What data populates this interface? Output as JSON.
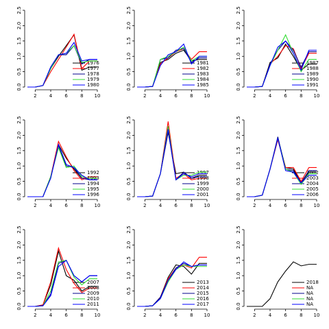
{
  "chart_data": [
    {
      "type": "line",
      "x": [
        1,
        2,
        3,
        4,
        5,
        6,
        7,
        8,
        9,
        10
      ],
      "xlim": [
        1,
        10
      ],
      "xticks": [
        2,
        4,
        6,
        8,
        10
      ],
      "ylim": [
        0,
        2.5
      ],
      "yticks": [
        {
          "value": 0,
          "label": "0.0"
        },
        {
          "value": 0.5,
          "label": "0.5"
        },
        {
          "value": 1,
          "label": "1.0"
        },
        {
          "value": 1.5,
          "label": "1.5"
        },
        {
          "value": 2,
          "label": "2.0"
        },
        {
          "value": 2.5,
          "label": "2.5"
        }
      ],
      "series": [
        {
          "name": "1976",
          "color": "#000000",
          "values": [
            0,
            0,
            0.05,
            0.6,
            1.0,
            1.35,
            1.7,
            0.55,
            0.65,
            0.65
          ]
        },
        {
          "name": "1977",
          "color": "#ff0000",
          "values": [
            0,
            0,
            0.05,
            0.5,
            0.9,
            1.3,
            1.72,
            0.6,
            0.85,
            0.85
          ]
        },
        {
          "name": "1978",
          "color": "#00008b",
          "values": [
            0,
            0,
            0.05,
            0.65,
            1.05,
            1.05,
            1.35,
            0.75,
            0.9,
            0.9
          ]
        },
        {
          "name": "1979",
          "color": "#33dd33",
          "values": [
            0,
            0,
            0.05,
            0.6,
            1.05,
            1.1,
            1.35,
            0.8,
            0.85,
            0.85
          ]
        },
        {
          "name": "1980",
          "color": "#0000ff",
          "values": [
            0,
            0,
            0.05,
            0.65,
            1.05,
            1.1,
            1.45,
            0.85,
            0.9,
            0.9
          ]
        }
      ]
    },
    {
      "type": "line",
      "x": [
        1,
        2,
        3,
        4,
        5,
        6,
        7,
        8,
        9,
        10
      ],
      "xlim": [
        1,
        10
      ],
      "xticks": [
        2,
        4,
        6,
        8,
        10
      ],
      "ylim": [
        0,
        2.5
      ],
      "yticks": [
        {
          "value": 0,
          "label": "0.0"
        },
        {
          "value": 0.5,
          "label": "0.5"
        },
        {
          "value": 1,
          "label": "1.0"
        },
        {
          "value": 1.5,
          "label": "1.5"
        },
        {
          "value": 2,
          "label": "2.0"
        },
        {
          "value": 2.5,
          "label": "2.5"
        }
      ],
      "series": [
        {
          "name": "1981",
          "color": "#000000",
          "values": [
            0,
            0,
            0.02,
            0.8,
            0.9,
            1.1,
            1.2,
            0.85,
            0.9,
            0.9
          ]
        },
        {
          "name": "1982",
          "color": "#ff0000",
          "values": [
            0,
            0,
            0.02,
            0.75,
            0.95,
            1.15,
            1.25,
            0.9,
            1.15,
            1.15
          ]
        },
        {
          "name": "1983",
          "color": "#00008b",
          "values": [
            0,
            0,
            0.02,
            0.9,
            0.95,
            1.2,
            1.25,
            0.8,
            0.95,
            0.95
          ]
        },
        {
          "name": "1984",
          "color": "#33dd33",
          "values": [
            0,
            0,
            0.02,
            0.9,
            1.0,
            1.15,
            1.3,
            0.85,
            1.0,
            1.0
          ]
        },
        {
          "name": "1985",
          "color": "#0000ff",
          "values": [
            0,
            0,
            0.02,
            0.7,
            1.05,
            1.15,
            1.4,
            0.75,
            1.0,
            1.0
          ]
        }
      ]
    },
    {
      "type": "line",
      "x": [
        1,
        2,
        3,
        4,
        5,
        6,
        7,
        8,
        9,
        10
      ],
      "xlim": [
        1,
        10
      ],
      "xticks": [
        2,
        4,
        6,
        8,
        10
      ],
      "ylim": [
        0,
        2.5
      ],
      "yticks": [
        {
          "value": 0,
          "label": "0.0"
        },
        {
          "value": 0.5,
          "label": "0.5"
        },
        {
          "value": 1,
          "label": "1.0"
        },
        {
          "value": 1.5,
          "label": "1.5"
        },
        {
          "value": 2,
          "label": "2.0"
        },
        {
          "value": 2.5,
          "label": "2.5"
        }
      ],
      "series": [
        {
          "name": "1987",
          "color": "#000000",
          "values": [
            0,
            0,
            0.02,
            0.8,
            0.95,
            1.4,
            1.0,
            0.55,
            0.75,
            0.75
          ]
        },
        {
          "name": "1988",
          "color": "#ff0000",
          "values": [
            0,
            0,
            0.02,
            0.75,
            1.0,
            1.35,
            1.25,
            0.6,
            1.1,
            1.1
          ]
        },
        {
          "name": "1989",
          "color": "#00008b",
          "values": [
            0,
            0,
            0.02,
            0.75,
            1.2,
            1.5,
            1.2,
            0.65,
            1.15,
            1.15
          ]
        },
        {
          "name": "1990",
          "color": "#33dd33",
          "values": [
            0,
            0,
            0.02,
            0.7,
            1.2,
            1.7,
            1.1,
            0.5,
            0.9,
            0.9
          ]
        },
        {
          "name": "1991",
          "color": "#0000ff",
          "values": [
            0,
            0,
            0.02,
            0.7,
            1.3,
            1.5,
            1.1,
            0.55,
            1.2,
            1.2
          ]
        }
      ]
    },
    {
      "type": "line",
      "x": [
        1,
        2,
        3,
        4,
        5,
        6,
        7,
        8,
        9,
        10
      ],
      "xlim": [
        1,
        10
      ],
      "xticks": [
        2,
        4,
        6,
        8,
        10
      ],
      "ylim": [
        0,
        2.5
      ],
      "yticks": [
        {
          "value": 0,
          "label": "0.0"
        },
        {
          "value": 0.5,
          "label": "0.5"
        },
        {
          "value": 1,
          "label": "1.0"
        },
        {
          "value": 1.5,
          "label": "1.5"
        },
        {
          "value": 2,
          "label": "2.0"
        },
        {
          "value": 2.5,
          "label": "2.5"
        }
      ],
      "series": [
        {
          "name": "1992",
          "color": "#000000",
          "values": [
            0,
            0,
            0,
            0.65,
            1.7,
            1.25,
            0.9,
            0.6,
            0.6,
            0.6
          ]
        },
        {
          "name": "1993",
          "color": "#ff0000",
          "values": [
            0,
            0,
            0,
            0.65,
            1.8,
            1.3,
            0.85,
            0.55,
            0.65,
            0.65
          ]
        },
        {
          "name": "1994",
          "color": "#00008b",
          "values": [
            0,
            0,
            0,
            0.65,
            1.65,
            1.0,
            0.95,
            0.6,
            0.55,
            0.55
          ]
        },
        {
          "name": "1995",
          "color": "#33dd33",
          "values": [
            0,
            0,
            0,
            0.65,
            1.6,
            0.95,
            1.0,
            0.65,
            0.6,
            0.6
          ]
        },
        {
          "name": "1996",
          "color": "#0000ff",
          "values": [
            0,
            0,
            0,
            0.6,
            1.7,
            1.05,
            0.95,
            0.7,
            0.55,
            0.55
          ]
        }
      ]
    },
    {
      "type": "line",
      "x": [
        1,
        2,
        3,
        4,
        5,
        6,
        7,
        8,
        9,
        10
      ],
      "xlim": [
        1,
        10
      ],
      "xticks": [
        2,
        4,
        6,
        8,
        10
      ],
      "ylim": [
        0,
        2.5
      ],
      "yticks": [
        {
          "value": 0,
          "label": "0.0"
        },
        {
          "value": 0.5,
          "label": "0.5"
        },
        {
          "value": 1,
          "label": "1.0"
        },
        {
          "value": 1.5,
          "label": "1.5"
        },
        {
          "value": 2,
          "label": "2.0"
        },
        {
          "value": 2.5,
          "label": "2.5"
        }
      ],
      "series": [
        {
          "name": "1997",
          "color": "#000000",
          "values": [
            0,
            0,
            0.02,
            0.75,
            2.1,
            0.75,
            0.8,
            0.6,
            0.7,
            0.7
          ]
        },
        {
          "name": "1998",
          "color": "#ff0000",
          "values": [
            0,
            0,
            0.02,
            0.75,
            2.45,
            0.6,
            0.75,
            0.55,
            0.6,
            0.6
          ]
        },
        {
          "name": "1999",
          "color": "#00008b",
          "values": [
            0,
            0,
            0.02,
            0.75,
            2.15,
            0.55,
            0.8,
            0.6,
            0.65,
            0.65
          ]
        },
        {
          "name": "2000",
          "color": "#33dd33",
          "values": [
            0,
            0,
            0.02,
            0.75,
            2.3,
            0.55,
            0.7,
            0.7,
            0.8,
            0.8
          ]
        },
        {
          "name": "2001",
          "color": "#0000ff",
          "values": [
            0,
            0,
            0.02,
            0.75,
            2.2,
            0.55,
            0.75,
            0.65,
            0.75,
            0.75
          ]
        }
      ]
    },
    {
      "type": "line",
      "x": [
        1,
        2,
        3,
        4,
        5,
        6,
        7,
        8,
        9,
        10
      ],
      "xlim": [
        1,
        10
      ],
      "xticks": [
        2,
        4,
        6,
        8,
        10
      ],
      "ylim": [
        0,
        2.5
      ],
      "yticks": [
        {
          "value": 0,
          "label": "0.0"
        },
        {
          "value": 0.5,
          "label": "0.5"
        },
        {
          "value": 1,
          "label": "1.0"
        },
        {
          "value": 1.5,
          "label": "1.5"
        },
        {
          "value": 2,
          "label": "2.0"
        },
        {
          "value": 2.5,
          "label": "2.5"
        }
      ],
      "series": [
        {
          "name": "2002",
          "color": "#000000",
          "values": [
            0,
            0,
            0.05,
            0.9,
            1.9,
            0.95,
            0.9,
            0.45,
            0.8,
            0.8
          ]
        },
        {
          "name": "2003",
          "color": "#ff0000",
          "values": [
            0,
            0,
            0.05,
            0.9,
            1.85,
            0.95,
            0.95,
            0.5,
            0.95,
            0.95
          ]
        },
        {
          "name": "2004",
          "color": "#00008b",
          "values": [
            0,
            0,
            0.05,
            0.9,
            1.95,
            0.9,
            0.85,
            0.45,
            0.85,
            0.85
          ]
        },
        {
          "name": "2005",
          "color": "#33dd33",
          "values": [
            0,
            0,
            0.05,
            0.9,
            1.9,
            0.9,
            0.8,
            0.4,
            0.75,
            0.75
          ]
        },
        {
          "name": "2006",
          "color": "#0000ff",
          "values": [
            0,
            0,
            0.05,
            0.9,
            1.9,
            0.85,
            0.8,
            0.45,
            0.7,
            0.7
          ]
        }
      ]
    },
    {
      "type": "line",
      "x": [
        1,
        2,
        3,
        4,
        5,
        6,
        7,
        8,
        9,
        10
      ],
      "xlim": [
        1,
        10
      ],
      "xticks": [
        2,
        4,
        6,
        8,
        10
      ],
      "ylim": [
        0,
        2.5
      ],
      "yticks": [
        {
          "value": 0,
          "label": "0.0"
        },
        {
          "value": 0.5,
          "label": "0.5"
        },
        {
          "value": 1,
          "label": "1.0"
        },
        {
          "value": 1.5,
          "label": "1.5"
        },
        {
          "value": 2,
          "label": "2.0"
        },
        {
          "value": 2.5,
          "label": "2.5"
        }
      ],
      "series": [
        {
          "name": "2007",
          "color": "#000000",
          "values": [
            0,
            0,
            0.05,
            0.7,
            1.8,
            1.0,
            0.85,
            0.5,
            0.65,
            0.65
          ]
        },
        {
          "name": "2008",
          "color": "#ff0000",
          "values": [
            0,
            0,
            0.05,
            0.8,
            1.9,
            1.2,
            0.75,
            0.45,
            0.6,
            0.6
          ]
        },
        {
          "name": "2009",
          "color": "#00008b",
          "values": [
            0,
            0,
            0.02,
            0.4,
            1.4,
            1.5,
            1.0,
            0.8,
            1.0,
            1.0
          ]
        },
        {
          "name": "2010",
          "color": "#33dd33",
          "values": [
            0,
            0,
            0.02,
            0.5,
            1.45,
            1.5,
            0.95,
            0.7,
            0.9,
            0.9
          ]
        },
        {
          "name": "2011",
          "color": "#0000ff",
          "values": [
            0,
            0,
            0.02,
            0.35,
            1.3,
            1.5,
            1.0,
            0.8,
            1.0,
            1.0
          ]
        }
      ]
    },
    {
      "type": "line",
      "x": [
        1,
        2,
        3,
        4,
        5,
        6,
        7,
        8,
        9,
        10
      ],
      "xlim": [
        1,
        10
      ],
      "xticks": [
        2,
        4,
        6,
        8,
        10
      ],
      "ylim": [
        0,
        2.5
      ],
      "yticks": [
        {
          "value": 0,
          "label": "0.0"
        },
        {
          "value": 0.5,
          "label": "0.5"
        },
        {
          "value": 1,
          "label": "1.0"
        },
        {
          "value": 1.5,
          "label": "1.5"
        },
        {
          "value": 2,
          "label": "2.0"
        },
        {
          "value": 2.5,
          "label": "2.5"
        }
      ],
      "series": [
        {
          "name": "2013",
          "color": "#000000",
          "values": [
            0,
            0,
            0.02,
            0.3,
            0.95,
            1.35,
            1.3,
            1.05,
            1.4,
            1.4
          ]
        },
        {
          "name": "2014",
          "color": "#ff0000",
          "values": [
            0,
            0,
            0.02,
            0.3,
            0.9,
            1.25,
            1.35,
            1.25,
            1.6,
            1.6
          ]
        },
        {
          "name": "2015",
          "color": "#00008b",
          "values": [
            0,
            0,
            0.02,
            0.3,
            0.85,
            1.25,
            1.4,
            1.3,
            1.35,
            1.35
          ]
        },
        {
          "name": "2016",
          "color": "#33dd33",
          "values": [
            0,
            0,
            0.02,
            0.25,
            0.8,
            1.2,
            1.35,
            1.3,
            1.3,
            1.3
          ]
        },
        {
          "name": "2017",
          "color": "#0000ff",
          "values": [
            0,
            0,
            0.02,
            0.25,
            0.85,
            1.2,
            1.45,
            1.3,
            1.35,
            1.35
          ]
        }
      ]
    },
    {
      "type": "line",
      "x": [
        1,
        2,
        3,
        4,
        5,
        6,
        7,
        8,
        9,
        10
      ],
      "xlim": [
        1,
        10
      ],
      "xticks": [
        2,
        4,
        6,
        8,
        10
      ],
      "ylim": [
        0,
        2.5
      ],
      "yticks": [
        {
          "value": 0,
          "label": "0.0"
        },
        {
          "value": 0.5,
          "label": "0.5"
        },
        {
          "value": 1,
          "label": "1.0"
        },
        {
          "value": 1.5,
          "label": "1.5"
        },
        {
          "value": 2,
          "label": "2.0"
        },
        {
          "value": 2.5,
          "label": "2.5"
        }
      ],
      "series": [
        {
          "name": "2018",
          "color": "#000000",
          "values": [
            0,
            0,
            0,
            0.25,
            0.8,
            1.15,
            1.45,
            1.32,
            1.37,
            1.37
          ]
        },
        {
          "name": "NA",
          "color": "#ff0000",
          "values": [
            null,
            null,
            null,
            null,
            null,
            null,
            null,
            null,
            null,
            null
          ]
        },
        {
          "name": "NA",
          "color": "#00008b",
          "values": [
            null,
            null,
            null,
            null,
            null,
            null,
            null,
            null,
            null,
            null
          ]
        },
        {
          "name": "NA",
          "color": "#33dd33",
          "values": [
            null,
            null,
            null,
            null,
            null,
            null,
            null,
            null,
            null,
            null
          ]
        },
        {
          "name": "NA",
          "color": "#0000ff",
          "values": [
            null,
            null,
            null,
            null,
            null,
            null,
            null,
            null,
            null,
            null
          ]
        }
      ]
    }
  ]
}
